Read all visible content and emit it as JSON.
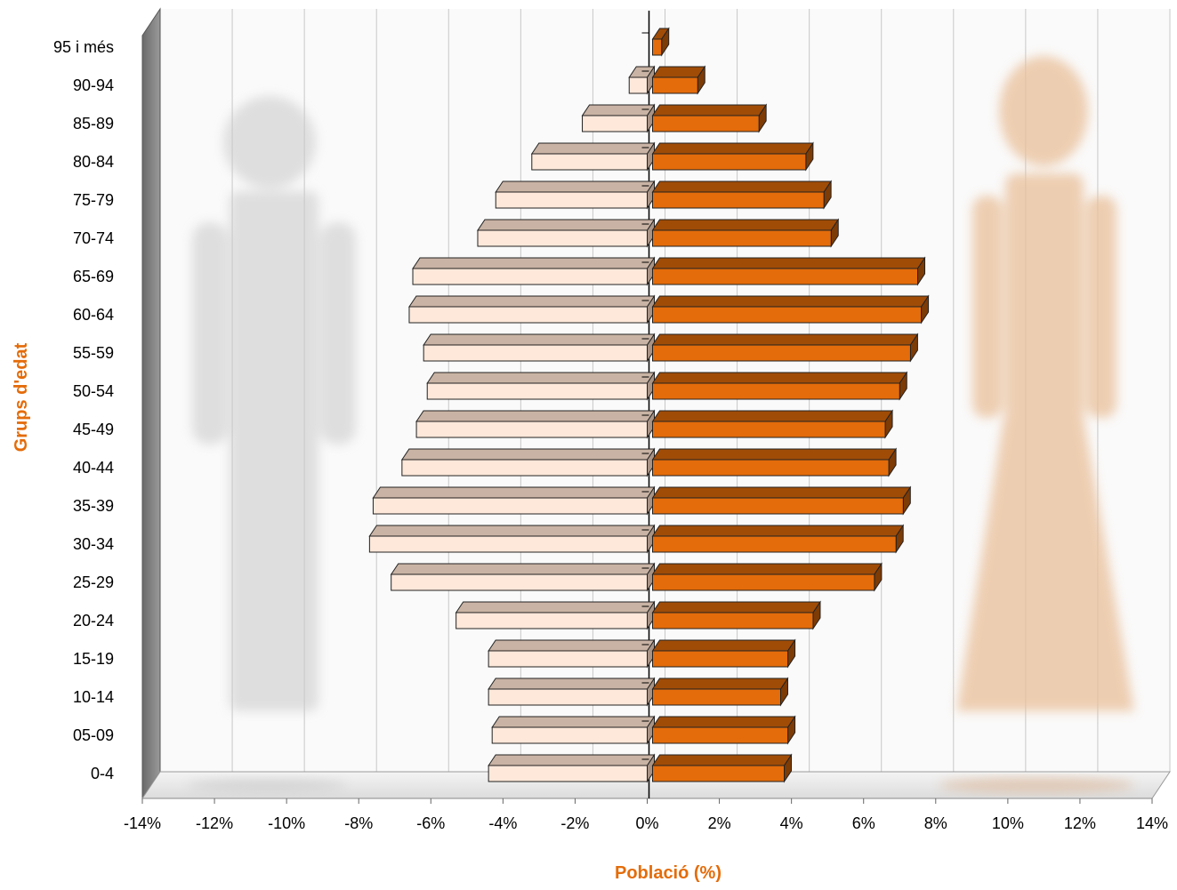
{
  "chart_data": {
    "type": "bar",
    "orientation": "horizontal",
    "layout": "population-pyramid",
    "categories": [
      "0-4",
      "05-09",
      "10-14",
      "15-19",
      "20-24",
      "25-29",
      "30-34",
      "35-39",
      "40-44",
      "45-49",
      "50-54",
      "55-59",
      "60-64",
      "65-69",
      "70-74",
      "75-79",
      "80-84",
      "85-89",
      "90-94",
      "95 i més"
    ],
    "series": [
      {
        "color": "#fde8da",
        "values": [
          -4.4,
          -4.3,
          -4.4,
          -4.4,
          -5.3,
          -7.1,
          -7.7,
          -7.6,
          -6.8,
          -6.4,
          -6.1,
          -6.2,
          -6.6,
          -6.5,
          -4.7,
          -4.2,
          -3.2,
          -1.8,
          -0.5,
          0
        ]
      },
      {
        "color": "#e46c0a",
        "values": [
          3.8,
          3.9,
          3.7,
          3.9,
          4.6,
          6.3,
          6.9,
          7.1,
          6.7,
          6.6,
          7.0,
          7.3,
          7.6,
          7.5,
          5.1,
          4.9,
          4.4,
          3.1,
          1.4,
          0.4
        ]
      }
    ],
    "xlabel": "Població (%)",
    "ylabel": "Grups d'edat",
    "xlim": [
      -14,
      14
    ],
    "xticks": [
      -14,
      -12,
      -10,
      -8,
      -6,
      -4,
      -2,
      0,
      2,
      4,
      6,
      8,
      10,
      12,
      14
    ],
    "xtick_labels": [
      "-14%",
      "-12%",
      "-10%",
      "-8%",
      "-6%",
      "-4%",
      "-2%",
      "0%",
      "2%",
      "4%",
      "6%",
      "8%",
      "10%",
      "12%",
      "14%"
    ],
    "grid": true,
    "label_color": "#e46c0a",
    "wall_color": "#7f7f7f",
    "decorations": [
      "male-silhouette-icon",
      "female-silhouette-icon"
    ]
  }
}
